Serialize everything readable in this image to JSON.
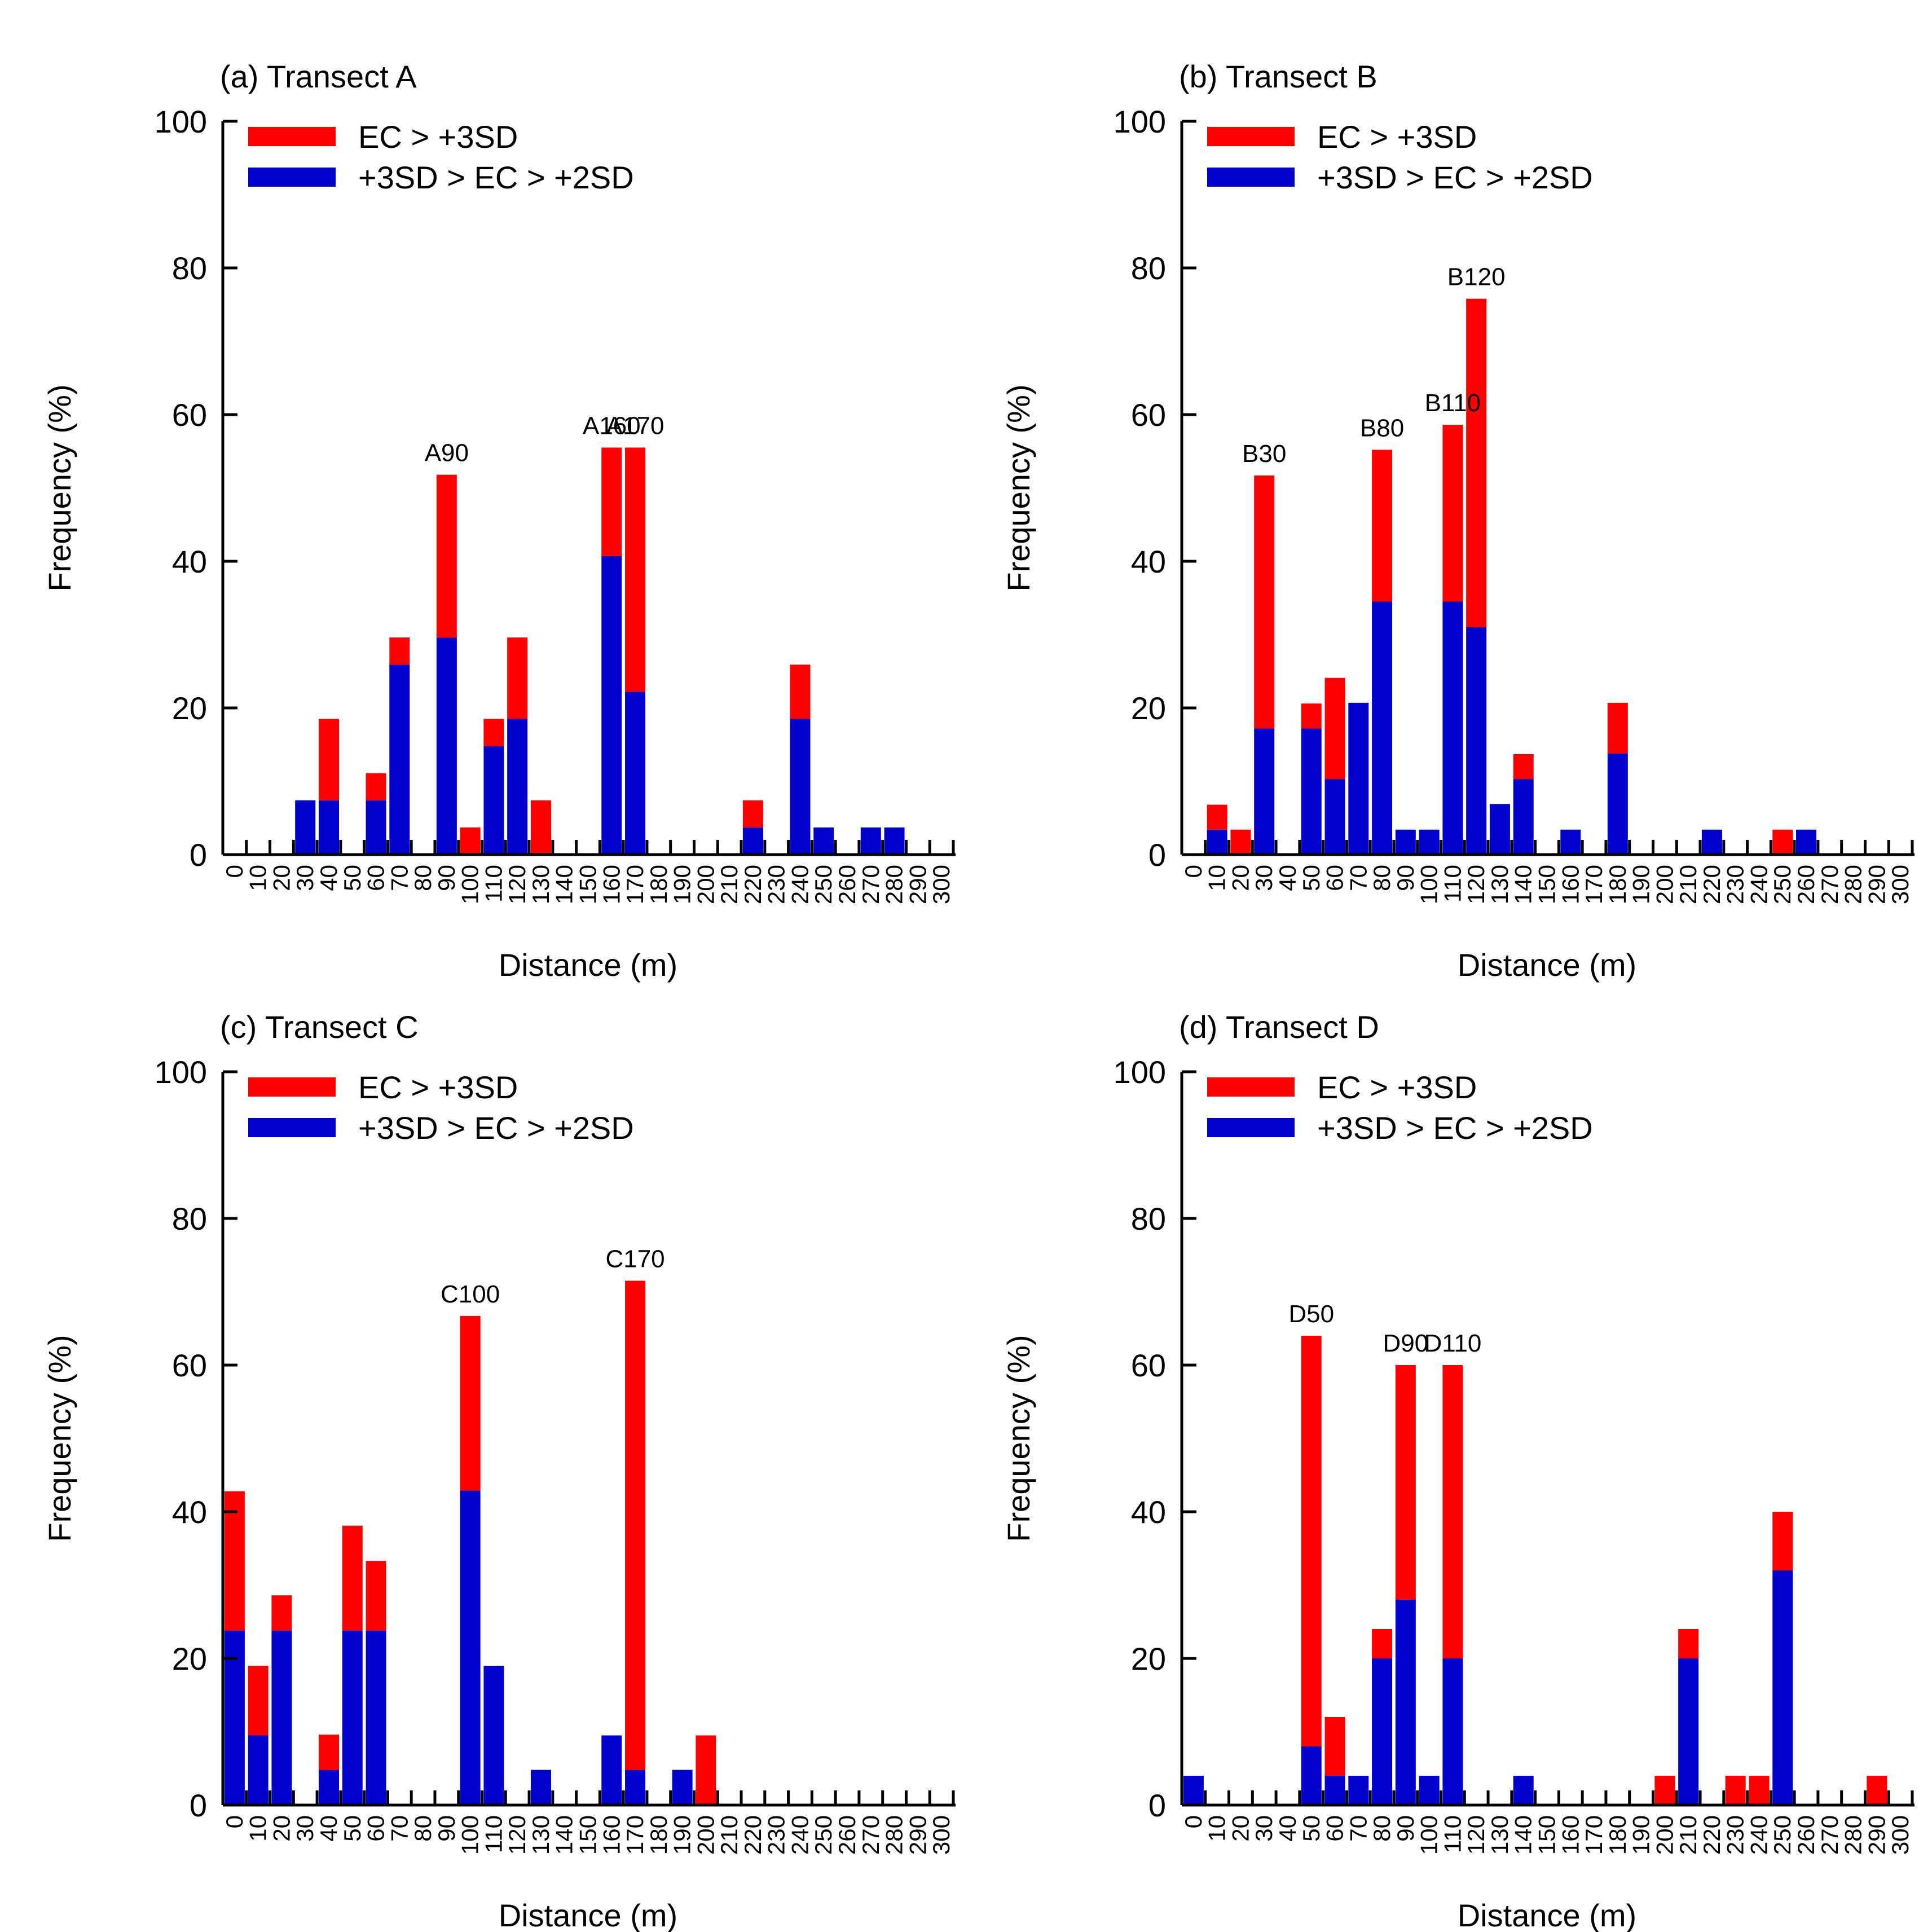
{
  "legend": {
    "red_label": "EC > +3SD",
    "blue_label": "+3SD > EC > +2SD"
  },
  "colors": {
    "red": "#ff0000",
    "blue": "#0000cc",
    "axis": "#000000"
  },
  "chart_data": [
    {
      "type": "bar",
      "stacked": true,
      "title": "(a) Transect A",
      "xlabel": "Distance (m)",
      "ylabel": "Frequency (%)",
      "ylim": [
        0,
        100
      ],
      "yticks": [
        0,
        20,
        40,
        60,
        80,
        100
      ],
      "categories": [
        "0",
        "10",
        "20",
        "30",
        "40",
        "50",
        "60",
        "70",
        "80",
        "90",
        "100",
        "110",
        "120",
        "130",
        "140",
        "150",
        "160",
        "170",
        "180",
        "190",
        "200",
        "210",
        "220",
        "230",
        "240",
        "250",
        "260",
        "270",
        "280",
        "290",
        "300"
      ],
      "series": [
        {
          "name": "+3SD > EC > +2SD",
          "color": "#0000cc",
          "values": [
            0,
            0,
            0,
            7.4,
            7.4,
            0,
            7.4,
            25.9,
            0,
            29.6,
            0,
            14.8,
            18.5,
            0,
            0,
            0,
            40.7,
            22.2,
            0,
            0,
            0,
            0,
            3.7,
            0,
            18.5,
            3.7,
            0,
            3.7,
            3.7,
            0,
            0
          ]
        },
        {
          "name": "EC > +3SD",
          "color": "#ff0000",
          "values": [
            0,
            0,
            0,
            0,
            11.1,
            0,
            3.7,
            3.7,
            0,
            22.2,
            3.7,
            3.7,
            11.1,
            7.4,
            0,
            0,
            14.8,
            33.3,
            0,
            0,
            0,
            0,
            3.7,
            0,
            7.4,
            0,
            0,
            0,
            0,
            0,
            0
          ]
        }
      ],
      "annotations": [
        {
          "category": "90",
          "text": "A90"
        },
        {
          "category": "160",
          "text": "A160"
        },
        {
          "category": "170",
          "text": "A170"
        }
      ]
    },
    {
      "type": "bar",
      "stacked": true,
      "title": "(b) Transect B",
      "xlabel": "Distance (m)",
      "ylabel": "Frequency (%)",
      "ylim": [
        0,
        100
      ],
      "yticks": [
        0,
        20,
        40,
        60,
        80,
        100
      ],
      "categories": [
        "0",
        "10",
        "20",
        "30",
        "40",
        "50",
        "60",
        "70",
        "80",
        "90",
        "100",
        "110",
        "120",
        "130",
        "140",
        "150",
        "160",
        "170",
        "180",
        "190",
        "200",
        "210",
        "220",
        "230",
        "240",
        "250",
        "260",
        "270",
        "280",
        "290",
        "300"
      ],
      "series": [
        {
          "name": "+3SD > EC > +2SD",
          "color": "#0000cc",
          "values": [
            0,
            3.4,
            0,
            17.2,
            0,
            17.2,
            10.3,
            20.7,
            34.5,
            3.4,
            3.4,
            34.5,
            31.0,
            6.9,
            10.3,
            0,
            3.4,
            0,
            13.8,
            0,
            0,
            0,
            3.4,
            0,
            0,
            0,
            3.4,
            0,
            0,
            0,
            0
          ]
        },
        {
          "name": "EC > +3SD",
          "color": "#ff0000",
          "values": [
            0,
            3.4,
            3.4,
            34.5,
            0,
            3.4,
            13.8,
            0,
            20.7,
            0,
            0,
            24.1,
            44.8,
            0,
            3.4,
            0,
            0,
            0,
            6.9,
            0,
            0,
            0,
            0,
            0,
            0,
            3.4,
            0,
            0,
            0,
            0,
            0
          ]
        }
      ],
      "annotations": [
        {
          "category": "30",
          "text": "B30"
        },
        {
          "category": "80",
          "text": "B80"
        },
        {
          "category": "110",
          "text": "B110"
        },
        {
          "category": "120",
          "text": "B120"
        }
      ]
    },
    {
      "type": "bar",
      "stacked": true,
      "title": "(c) Transect C",
      "xlabel": "Distance (m)",
      "ylabel": "Frequency (%)",
      "ylim": [
        0,
        100
      ],
      "yticks": [
        0,
        20,
        40,
        60,
        80,
        100
      ],
      "categories": [
        "0",
        "10",
        "20",
        "30",
        "40",
        "50",
        "60",
        "70",
        "80",
        "90",
        "100",
        "110",
        "120",
        "130",
        "140",
        "150",
        "160",
        "170",
        "180",
        "190",
        "200",
        "210",
        "220",
        "230",
        "240",
        "250",
        "260",
        "270",
        "280",
        "290",
        "300"
      ],
      "series": [
        {
          "name": "+3SD > EC > +2SD",
          "color": "#0000cc",
          "values": [
            23.8,
            9.5,
            23.8,
            0,
            4.8,
            23.8,
            23.8,
            0,
            0,
            0,
            42.9,
            19.0,
            0,
            4.8,
            0,
            0,
            9.5,
            4.8,
            0,
            4.8,
            0,
            0,
            0,
            0,
            0,
            0,
            0,
            0,
            0,
            0,
            0
          ]
        },
        {
          "name": "EC > +3SD",
          "color": "#ff0000",
          "values": [
            19.0,
            9.5,
            4.8,
            0,
            4.8,
            14.3,
            9.5,
            0,
            0,
            0,
            23.8,
            0,
            0,
            0,
            0,
            0,
            0,
            66.7,
            0,
            0,
            9.5,
            0,
            0,
            0,
            0,
            0,
            0,
            0,
            0,
            0,
            0
          ]
        }
      ],
      "annotations": [
        {
          "category": "100",
          "text": "C100"
        },
        {
          "category": "170",
          "text": "C170"
        }
      ]
    },
    {
      "type": "bar",
      "stacked": true,
      "title": "(d) Transect D",
      "xlabel": "Distance (m)",
      "ylabel": "Frequency (%)",
      "ylim": [
        0,
        100
      ],
      "yticks": [
        0,
        20,
        40,
        60,
        80,
        100
      ],
      "categories": [
        "0",
        "10",
        "20",
        "30",
        "40",
        "50",
        "60",
        "70",
        "80",
        "90",
        "100",
        "110",
        "120",
        "130",
        "140",
        "150",
        "160",
        "170",
        "180",
        "190",
        "200",
        "210",
        "220",
        "230",
        "240",
        "250",
        "260",
        "270",
        "280",
        "290",
        "300"
      ],
      "series": [
        {
          "name": "+3SD > EC > +2SD",
          "color": "#0000cc",
          "values": [
            4,
            0,
            0,
            0,
            0,
            8,
            4,
            4,
            20,
            28,
            4,
            20,
            0,
            0,
            4,
            0,
            0,
            0,
            0,
            0,
            0,
            20,
            0,
            0,
            0,
            32,
            0,
            0,
            0,
            0,
            0
          ]
        },
        {
          "name": "EC > +3SD",
          "color": "#ff0000",
          "values": [
            0,
            0,
            0,
            0,
            0,
            56,
            8,
            0,
            4,
            32,
            0,
            40,
            0,
            0,
            0,
            0,
            0,
            0,
            0,
            0,
            4,
            4,
            0,
            4,
            4,
            8,
            0,
            0,
            0,
            4,
            0
          ]
        }
      ],
      "annotations": [
        {
          "category": "50",
          "text": "D50"
        },
        {
          "category": "90",
          "text": "D90"
        },
        {
          "category": "110",
          "text": "D110"
        }
      ]
    }
  ]
}
